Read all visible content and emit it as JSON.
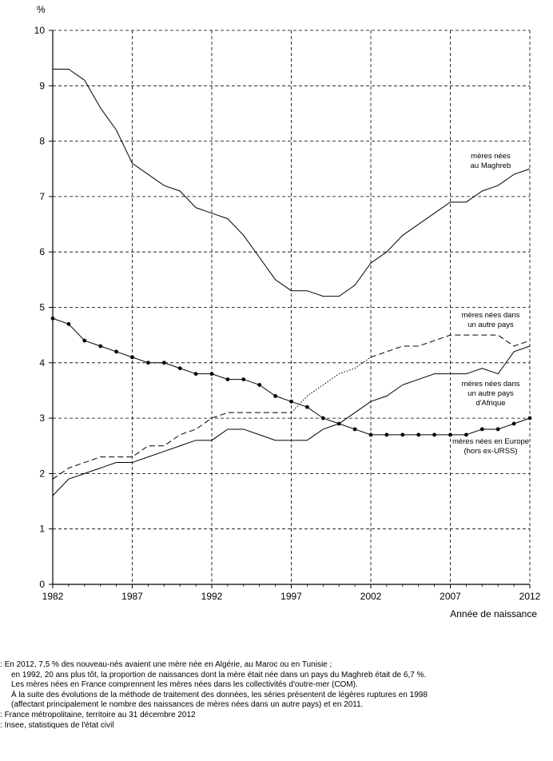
{
  "chart_data": {
    "type": "line",
    "ylabel": "%",
    "xlabel": "Année de naissance",
    "ylim": [
      0,
      10
    ],
    "xlim": [
      1982,
      2012
    ],
    "y_ticks": [
      0,
      1,
      2,
      3,
      4,
      5,
      6,
      7,
      8,
      9,
      10
    ],
    "x_ticks": [
      1982,
      1987,
      1992,
      1997,
      2002,
      2007,
      2012
    ],
    "grid": true,
    "x": [
      1982,
      1983,
      1984,
      1985,
      1986,
      1987,
      1988,
      1989,
      1990,
      1991,
      1992,
      1993,
      1994,
      1995,
      1996,
      1997,
      1998,
      1999,
      2000,
      2001,
      2002,
      2003,
      2004,
      2005,
      2006,
      2007,
      2008,
      2009,
      2010,
      2011,
      2012
    ],
    "series": [
      {
        "name": "mères nées au Maghreb",
        "label_lines": [
          "mères nées",
          "au Maghreb"
        ],
        "style": "solid",
        "values": [
          9.3,
          9.3,
          9.1,
          8.6,
          8.2,
          7.6,
          7.4,
          7.2,
          7.1,
          6.8,
          6.7,
          6.6,
          6.3,
          5.9,
          5.5,
          5.3,
          5.3,
          5.2,
          5.2,
          5.4,
          5.8,
          6.0,
          6.3,
          6.5,
          6.7,
          6.9,
          6.9,
          7.1,
          7.2,
          7.4,
          7.5
        ]
      },
      {
        "name": "mères nées dans un autre pays",
        "label_lines": [
          "mères nées dans",
          "un autre pays"
        ],
        "style": "dashed",
        "values": [
          1.9,
          2.1,
          2.2,
          2.3,
          2.3,
          2.3,
          2.5,
          2.5,
          2.7,
          2.8,
          3.0,
          3.1,
          3.1,
          3.1,
          3.1,
          3.1,
          3.4,
          3.6,
          3.8,
          3.9,
          4.1,
          4.2,
          4.3,
          4.3,
          4.4,
          4.5,
          4.5,
          4.5,
          4.5,
          4.3,
          4.4
        ]
      },
      {
        "name": "mères nées dans un autre pays d'Afrique",
        "label_lines": [
          "mères nées  dans",
          "un autre pays",
          "d'Afrique"
        ],
        "style": "solid",
        "values": [
          1.6,
          1.9,
          2.0,
          2.1,
          2.2,
          2.2,
          2.3,
          2.4,
          2.5,
          2.6,
          2.6,
          2.8,
          2.8,
          2.7,
          2.6,
          2.6,
          2.6,
          2.8,
          2.9,
          3.1,
          3.3,
          3.4,
          3.6,
          3.7,
          3.8,
          3.8,
          3.8,
          3.9,
          3.8,
          4.2,
          4.3
        ]
      },
      {
        "name": "mères nées en Europe (hors ex-URSS)",
        "label_lines": [
          "mères nées en Europe",
          "(hors ex-URSS)"
        ],
        "style": "solid-markers",
        "values": [
          4.8,
          4.7,
          4.4,
          4.3,
          4.2,
          4.1,
          4.0,
          4.0,
          3.9,
          3.8,
          3.8,
          3.7,
          3.7,
          3.6,
          3.4,
          3.3,
          3.2,
          3.0,
          2.9,
          2.8,
          2.7,
          2.7,
          2.7,
          2.7,
          2.7,
          2.7,
          2.7,
          2.8,
          2.8,
          2.9,
          3.0
        ]
      }
    ]
  },
  "notes": {
    "line1": "En 2012, 7,5 % des nouveau-nés avaient une mère née en Algérie, au Maroc ou en Tunisie ;",
    "line2": "en 1992, 20 ans plus tôt, la proportion de naissances dont la mère était née dans un pays du Maghreb était de 6,7 %.",
    "line3": "Les mères nées en France comprennent les mères nées dans les collectivités d'outre-mer (COM).",
    "line4": "À la suite des évolutions de la méthode de traitement des données, les séries présentent de légères ruptures en 1998",
    "line5": "(affectant principalement le nombre des naissances de mères nées dans un autre pays) et en 2011.",
    "scope": "France métropolitaine, territoire au 31 décembre 2012",
    "source": "Insee, statistiques de l'état civil"
  }
}
